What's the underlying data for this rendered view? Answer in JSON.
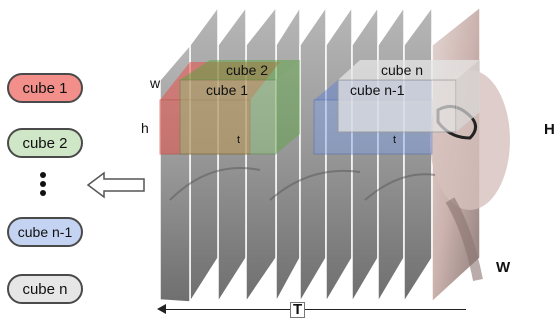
{
  "cubes": [
    {
      "label": "cube 1",
      "color": "#f28f8a"
    },
    {
      "label": "cube 2",
      "color": "#cfe7c7"
    },
    {
      "label": "cube n-1",
      "color": "#c4d3f1"
    },
    {
      "label": "cube n",
      "color": "#e6e6e6"
    }
  ],
  "box_labels": {
    "cube_1": "cube 1",
    "cube_2": "cube 2",
    "cube_n_1": "cube n-1",
    "cube_n": "cube n"
  },
  "dims": {
    "w_small": "w",
    "h_small": "h",
    "t_small": "t",
    "H": "H",
    "W": "W",
    "T": "T"
  },
  "colors": {
    "cube_red": "#e8524a",
    "cube_green": "#5aa43e",
    "cube_blue": "#5b7fd8",
    "cube_gray": "#d8d8d8"
  }
}
